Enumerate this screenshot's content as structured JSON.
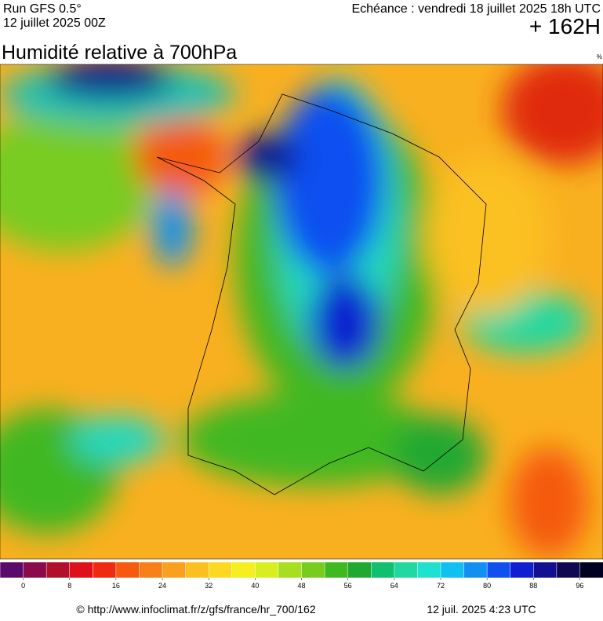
{
  "header": {
    "run": "Run GFS 0.5°",
    "date": "12 juillet 2025 00Z",
    "echeance": "Echéance : vendredi 18 juillet 2025 18h UTC",
    "lead": "+ 162H"
  },
  "title": "Humidité relative à 700hPa",
  "unit": "%",
  "legend": {
    "colors": [
      "#5a0a6a",
      "#8a0a4a",
      "#b0102a",
      "#e0101a",
      "#f02a10",
      "#f55a10",
      "#f7801a",
      "#f9a020",
      "#fbc020",
      "#fcd820",
      "#f5ef20",
      "#d8ee20",
      "#a8de20",
      "#78cc20",
      "#40b820",
      "#20a830",
      "#10c070",
      "#20d8a0",
      "#20e0d0",
      "#10c0f0",
      "#1090f0",
      "#1050f0",
      "#1020d0",
      "#101090",
      "#100850",
      "#000020"
    ],
    "ticks": [
      0,
      8,
      16,
      24,
      32,
      40,
      48,
      56,
      64,
      72,
      80,
      88,
      96
    ]
  },
  "footer": {
    "url": "© http://www.infoclimat.fr/z/gfs/france/hr_700/162",
    "timestamp": "12 juil. 2025  4:23 UTC"
  }
}
